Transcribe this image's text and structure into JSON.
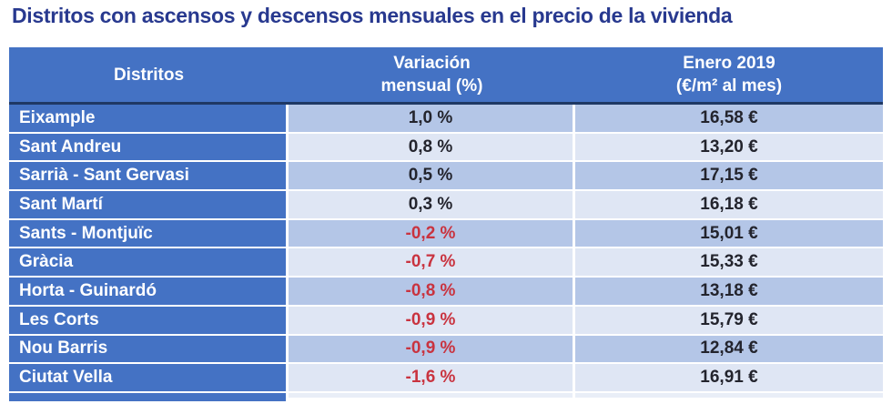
{
  "title": "Distritos con ascensos y descensos mensuales en el precio de la vivienda",
  "colors": {
    "title_color": "#28398F",
    "header_blue": "#4472C4",
    "navy_line": "#1F3864",
    "band_dark": "#B4C6E7",
    "band_light": "#DFE6F4",
    "negative_red": "#C9333F",
    "text_dark": "#23242D"
  },
  "table": {
    "headers": {
      "district": "Distritos",
      "variation_line1": "Variación",
      "variation_line2": "mensual (%)",
      "price_line1": "Enero 2019",
      "price_line2": "(€/m² al mes)"
    },
    "rows": [
      {
        "district": "Eixample",
        "variation": "1,0 %",
        "price": "16,58 €",
        "negative": false
      },
      {
        "district": "Sant Andreu",
        "variation": "0,8 %",
        "price": "13,20 €",
        "negative": false
      },
      {
        "district": "Sarrià - Sant Gervasi",
        "variation": "0,5 %",
        "price": "17,15 €",
        "negative": false
      },
      {
        "district": "Sant Martí",
        "variation": "0,3 %",
        "price": "16,18 €",
        "negative": false
      },
      {
        "district": "Sants - Montjuïc",
        "variation": "-0,2 %",
        "price": "15,01 €",
        "negative": true
      },
      {
        "district": "Gràcia",
        "variation": "-0,7 %",
        "price": "15,33 €",
        "negative": true
      },
      {
        "district": "Horta - Guinardó",
        "variation": "-0,8 %",
        "price": "13,18 €",
        "negative": true
      },
      {
        "district": "Les Corts",
        "variation": "-0,9 %",
        "price": "15,79 €",
        "negative": true
      },
      {
        "district": "Nou Barris",
        "variation": "-0,9 %",
        "price": "12,84 €",
        "negative": true
      },
      {
        "district": "Ciutat Vella",
        "variation": "-1,6 %",
        "price": "16,91 €",
        "negative": true
      }
    ]
  },
  "chart_data": {
    "type": "table",
    "title": "Distritos con ascensos y descensos mensuales en el precio de la vivienda",
    "columns": [
      "Distritos",
      "Variación mensual (%)",
      "Enero 2019 (€/m² al mes)"
    ],
    "rows": [
      [
        "Eixample",
        1.0,
        16.58
      ],
      [
        "Sant Andreu",
        0.8,
        13.2
      ],
      [
        "Sarrià - Sant Gervasi",
        0.5,
        17.15
      ],
      [
        "Sant Martí",
        0.3,
        16.18
      ],
      [
        "Sants - Montjuïc",
        -0.2,
        15.01
      ],
      [
        "Gràcia",
        -0.7,
        15.33
      ],
      [
        "Horta - Guinardó",
        -0.8,
        13.18
      ],
      [
        "Les Corts",
        -0.9,
        15.79
      ],
      [
        "Nou Barris",
        -0.9,
        12.84
      ],
      [
        "Ciutat Vella",
        -1.6,
        16.91
      ]
    ],
    "units": {
      "variation": "% mensual",
      "price": "€/m² al mes"
    },
    "notes": "Valores negativos mostrados en rojo; filas con bandas alternas azul claro"
  }
}
